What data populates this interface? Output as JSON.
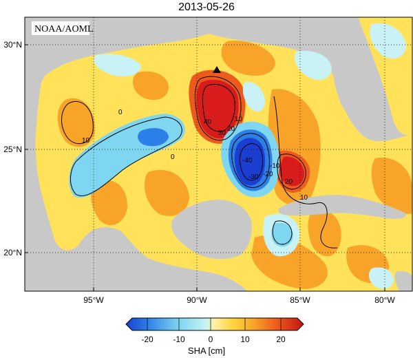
{
  "title": "2013-05-26",
  "source_label": "NOAA/AOML",
  "lat_ticks": [
    "30°N",
    "25°N",
    "20°N"
  ],
  "lon_ticks": [
    "95°W",
    "90°W",
    "85°W",
    "80°W"
  ],
  "colorbar": {
    "title": "SHA [cm]",
    "labels": [
      "-20",
      "-10",
      "0",
      "10",
      "20"
    ],
    "range": [
      -25,
      25
    ]
  },
  "contour_labels": [
    "10",
    "0",
    "40",
    "30",
    "20",
    "10",
    "-40",
    "-30",
    "-20",
    "-10",
    "20",
    "10",
    "0"
  ],
  "colors": {
    "land": "#c8c8c8",
    "ocean_base": "#ffe25a",
    "strong_pos": "#d81c1c",
    "strong_neg": "#1a3fd0"
  }
}
